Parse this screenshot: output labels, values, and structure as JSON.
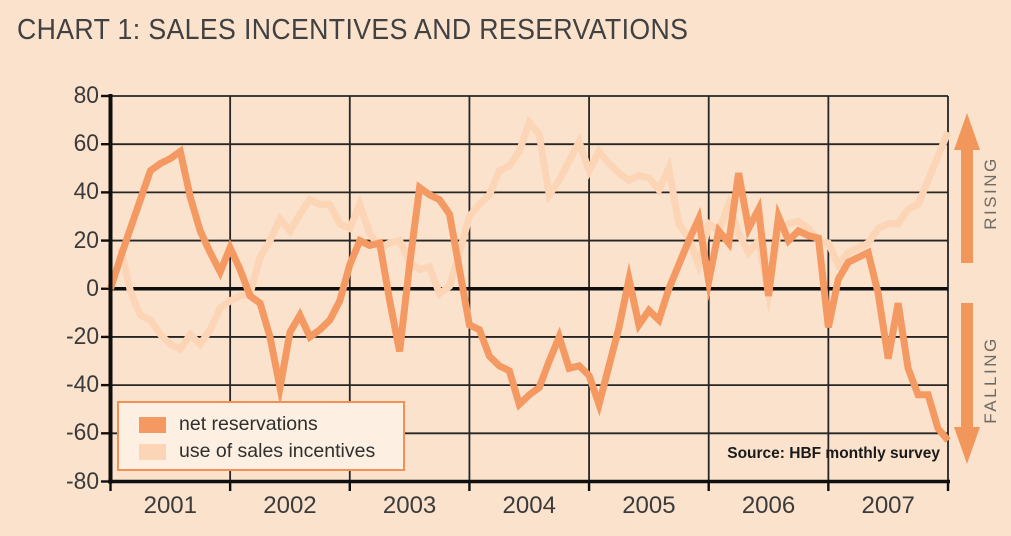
{
  "title": "CHART 1: SALES INCENTIVES AND RESERVATIONS",
  "source_note": "Source: HBF monthly survey",
  "annotations": {
    "rising": "RISING",
    "falling": "FALLING"
  },
  "colors": {
    "background": "#fae2cc",
    "net_reservations": "#f49962",
    "sales_incentives": "#fbd5b5",
    "legend_background": "#fdf0e3",
    "legend_border": "#f09255",
    "grid": "#262626",
    "axis": "#0f0f0f",
    "arrow": "#f2975b",
    "text": "#3b3b3b"
  },
  "chart_data": {
    "type": "line",
    "title": "CHART 1: SALES INCENTIVES AND RESERVATIONS",
    "x_unit": "monthly",
    "grid": true,
    "legend_position": "inside bottom-left",
    "x_axis": {
      "years": [
        2001,
        2002,
        2003,
        2004,
        2005,
        2006,
        2007
      ]
    },
    "y_axis": {
      "ticks": [
        80,
        60,
        40,
        20,
        0,
        -20,
        -40,
        -60,
        -80
      ],
      "range": [
        -80,
        80
      ]
    },
    "series": [
      {
        "name": "net reservations",
        "color": "#f49962",
        "start_index": 0,
        "values": [
          0,
          13,
          25,
          37,
          49,
          52,
          54,
          57,
          38,
          24,
          15,
          7,
          17,
          8,
          -3,
          -6,
          -20,
          -41,
          -18,
          -11,
          -20,
          -17,
          -13,
          -5,
          10,
          20,
          18,
          19,
          -5,
          -26,
          10,
          42,
          39,
          37,
          31,
          8,
          -15,
          -17,
          -28,
          -32,
          -34,
          -48,
          -44,
          -41,
          -30,
          -20,
          -33,
          -32,
          -36,
          -48,
          -32,
          -16,
          4,
          -15,
          -9,
          -13,
          0,
          10,
          20,
          29,
          3,
          24,
          19,
          48,
          25,
          33,
          -3,
          30,
          20,
          24,
          22,
          21,
          -16,
          4,
          11,
          13,
          15,
          -2,
          -29,
          -6,
          -33,
          -44,
          -44,
          -58,
          -63
        ]
      },
      {
        "name": "use of sales incentives",
        "color": "#fbd5b5",
        "start_index": 1,
        "values": [
          17,
          -1,
          -11,
          -13,
          -19,
          -23,
          -25,
          -19,
          -23,
          -17,
          -8,
          -5,
          -3,
          -2,
          13,
          20,
          29,
          24,
          31,
          37,
          35,
          35,
          27,
          25,
          35,
          23,
          17,
          19,
          20,
          11,
          8,
          9,
          -2,
          1,
          15,
          30,
          35,
          39,
          49,
          51,
          57,
          69,
          64,
          39,
          45,
          53,
          61,
          49,
          57,
          52,
          48,
          45,
          47,
          46,
          41,
          50,
          27,
          21,
          10,
          27,
          24,
          35,
          23,
          15,
          20,
          -2,
          24,
          27,
          28,
          25,
          20,
          19,
          10,
          15,
          17,
          19,
          25,
          27,
          27,
          33,
          35,
          45,
          55,
          65
        ]
      }
    ]
  }
}
